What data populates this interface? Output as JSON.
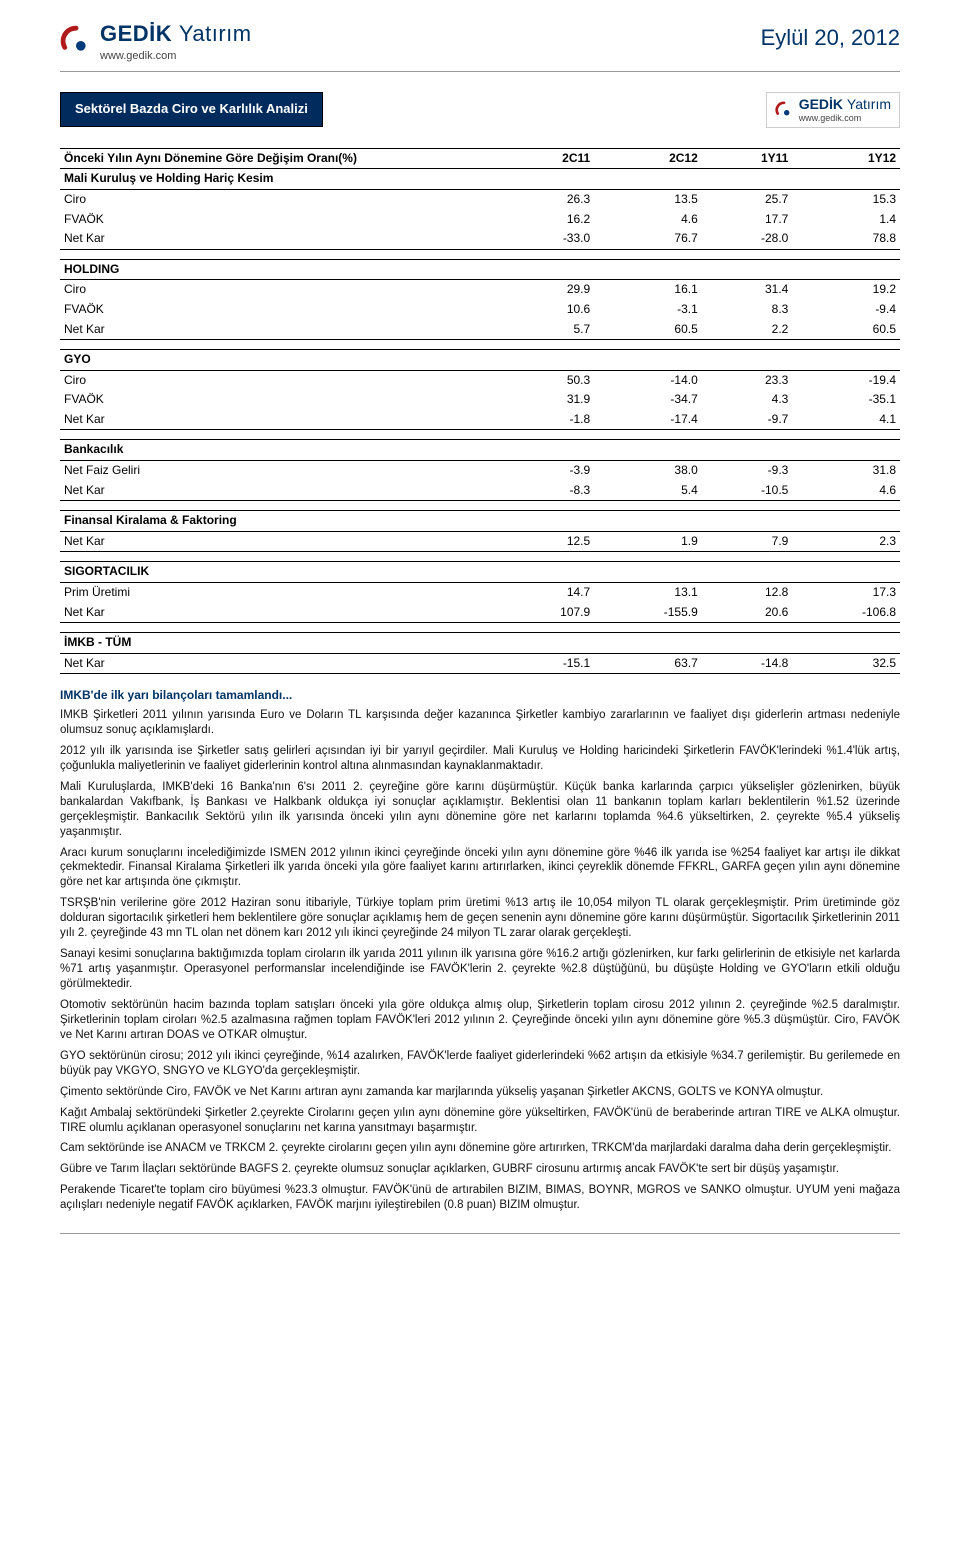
{
  "header": {
    "brand": "GEDİK",
    "brand_suffix": "Yatırım",
    "url": "www.gedik.com",
    "date": "Eylül 20, 2012",
    "logo_colors": {
      "arc": "#b11a1a",
      "dot": "#003a7a"
    }
  },
  "title": "Sektörel Bazda Ciro ve Karlılık Analizi",
  "table": {
    "heading": "Önceki Yılın Aynı Dönemine Göre Değişim Oranı(%)",
    "columns": [
      "2C11",
      "2C12",
      "1Y11",
      "1Y12"
    ],
    "sections": [
      {
        "name": "Mali Kuruluş ve Holding Hariç Kesim",
        "rows": [
          {
            "label": "Ciro",
            "vals": [
              "26.3",
              "13.5",
              "25.7",
              "15.3"
            ]
          },
          {
            "label": "FVAÖK",
            "vals": [
              "16.2",
              "4.6",
              "17.7",
              "1.4"
            ]
          },
          {
            "label": "Net Kar",
            "vals": [
              "-33.0",
              "76.7",
              "-28.0",
              "78.8"
            ]
          }
        ]
      },
      {
        "name": "HOLDING",
        "rows": [
          {
            "label": "Ciro",
            "vals": [
              "29.9",
              "16.1",
              "31.4",
              "19.2"
            ]
          },
          {
            "label": "FVAÖK",
            "vals": [
              "10.6",
              "-3.1",
              "8.3",
              "-9.4"
            ]
          },
          {
            "label": "Net Kar",
            "vals": [
              "5.7",
              "60.5",
              "2.2",
              "60.5"
            ]
          }
        ]
      },
      {
        "name": "GYO",
        "rows": [
          {
            "label": "Ciro",
            "vals": [
              "50.3",
              "-14.0",
              "23.3",
              "-19.4"
            ]
          },
          {
            "label": "FVAÖK",
            "vals": [
              "31.9",
              "-34.7",
              "4.3",
              "-35.1"
            ]
          },
          {
            "label": "Net Kar",
            "vals": [
              "-1.8",
              "-17.4",
              "-9.7",
              "4.1"
            ]
          }
        ]
      },
      {
        "name": "Bankacılık",
        "rows": [
          {
            "label": "Net Faiz Geliri",
            "vals": [
              "-3.9",
              "38.0",
              "-9.3",
              "31.8"
            ]
          },
          {
            "label": "Net Kar",
            "vals": [
              "-8.3",
              "5.4",
              "-10.5",
              "4.6"
            ]
          }
        ]
      },
      {
        "name": "Finansal Kiralama & Faktoring",
        "rows": [
          {
            "label": "Net Kar",
            "vals": [
              "12.5",
              "1.9",
              "7.9",
              "2.3"
            ]
          }
        ]
      },
      {
        "name": "SIGORTACILIK",
        "rows": [
          {
            "label": "Prim Üretimi",
            "vals": [
              "14.7",
              "13.1",
              "12.8",
              "17.3"
            ]
          },
          {
            "label": "Net Kar",
            "vals": [
              "107.9",
              "-155.9",
              "20.6",
              "-106.8"
            ]
          }
        ]
      },
      {
        "name": "İMKB - TÜM",
        "rows": [
          {
            "label": "Net Kar",
            "vals": [
              "-15.1",
              "63.7",
              "-14.8",
              "32.5"
            ]
          }
        ]
      }
    ]
  },
  "commentary": {
    "title": "IMKB'de ilk yarı bilançoları tamamlandı...",
    "paragraphs": [
      "IMKB Şirketleri 2011 yılının yarısında Euro ve Doların TL karşısında değer kazanınca Şirketler kambiyo zararlarının ve faaliyet dışı giderlerin artması nedeniyle olumsuz sonuç açıklamışlardı.",
      "2012 yılı ilk yarısında ise Şirketler satış gelirleri açısından iyi bir yarıyıl geçirdiler. Mali Kuruluş ve Holding haricindeki Şirketlerin FAVÖK'lerindeki %1.4'lük artış, çoğunlukla maliyetlerinin ve faaliyet giderlerinin kontrol altına alınmasından kaynaklanmaktadır.",
      "Mali Kuruluşlarda, IMKB'deki 16 Banka'nın 6'sı 2011 2. çeyreğine göre karını düşürmüştür. Küçük banka karlarında çarpıcı yükselişler gözlenirken, büyük bankalardan Vakıfbank, İş Bankası ve Halkbank oldukça iyi sonuçlar açıklamıştır. Beklentisi olan 11 bankanın toplam karları beklentilerin %1.52 üzerinde gerçekleşmiştir. Bankacılık Sektörü yılın ilk yarısında önceki yılın aynı dönemine göre net karlarını toplamda %4.6 yükseltirken, 2. çeyrekte %5.4 yükseliş yaşanmıştır.",
      "Aracı kurum sonuçlarını incelediğimizde ISMEN 2012 yılının ikinci çeyreğinde önceki yılın aynı dönemine göre %46 ilk yarıda ise %254 faaliyet kar artışı ile dikkat çekmektedir. Finansal Kiralama Şirketleri ilk yarıda önceki yıla göre faaliyet karını artırırlarken, ikinci çeyreklik dönemde FFKRL, GARFA geçen yılın aynı dönemine göre net kar artışında öne çıkmıştır.",
      "TSRŞB'nin verilerine göre 2012 Haziran sonu itibariyle, Türkiye toplam prim üretimi %13 artış ile 10,054 milyon TL olarak gerçekleşmiştir. Prim üretiminde göz dolduran sigortacılık şirketleri hem beklentilere göre sonuçlar açıklamış hem de geçen senenin aynı dönemine göre karını düşürmüştür. Sigortacılık Şirketlerinin 2011 yılı 2. çeyreğinde 43 mn TL olan net dönem karı 2012 yılı ikinci çeyreğinde 24 milyon TL zarar olarak gerçekleşti.",
      "Sanayi kesimi sonuçlarına baktığımızda toplam ciroların ilk yarıda 2011 yılının ilk yarısına göre %16.2 artığı gözlenirken, kur farkı gelirlerinin de etkisiyle net karlarda %71 artış yaşanmıştır. Operasyonel performanslar incelendiğinde ise FAVÖK'lerin 2. çeyrekte %2.8 düştüğünü, bu düşüşte Holding ve GYO'ların etkili olduğu görülmektedir.",
      "Otomotiv sektörünün hacim bazında toplam satışları önceki yıla göre oldukça almış olup, Şirketlerin toplam cirosu 2012 yılının 2. çeyreğinde %2.5 daralmıştır. Şirketlerinin toplam ciroları %2.5 azalmasına rağmen toplam FAVÖK'leri 2012 yılının 2. Çeyreğinde önceki yılın aynı dönemine göre %5.3 düşmüştür. Ciro, FAVÖK ve Net Karını artıran DOAS ve OTKAR olmuştur.",
      "GYO sektörünün cirosu; 2012 yılı ikinci çeyreğinde, %14 azalırken, FAVÖK'lerde faaliyet giderlerindeki %62 artışın da etkisiyle %34.7 gerilemiştir. Bu gerilemede en büyük pay VKGYO, SNGYO ve KLGYO'da gerçekleşmiştir.",
      "Çimento sektöründe Ciro, FAVÖK ve Net Karını artıran aynı zamanda kar marjlarında yükseliş yaşanan Şirketler AKCNS, GOLTS ve KONYA olmuştur.",
      "Kağıt Ambalaj sektöründeki Şirketler 2.çeyrekte Cirolarını geçen yılın aynı dönemine göre yükseltirken, FAVÖK'ünü de beraberinde artıran TIRE ve ALKA olmuştur. TIRE olumlu açıklanan operasyonel sonuçlarını net karına yansıtmayı başarmıştır.",
      "Cam sektöründe ise ANACM ve TRKCM 2. çeyrekte cirolarını geçen yılın aynı dönemine göre artırırken, TRKCM'da marjlardaki daralma daha derin gerçekleşmiştir.",
      "Gübre ve Tarım İlaçları sektöründe BAGFS 2. çeyrekte olumsuz sonuçlar açıklarken, GUBRF cirosunu artırmış ancak FAVÖK'te sert bir düşüş yaşamıştır.",
      "Perakende Ticaret'te toplam ciro büyümesi %23.3 olmuştur. FAVÖK'ünü de artırabilen BIZIM, BIMAS, BOYNR, MGROS ve SANKO olmuştur. UYUM yeni mağaza açılışları nedeniyle negatif FAVÖK açıklarken, FAVÖK marjını iyileştirebilen (0.8 puan) BIZIM olmuştur."
    ]
  },
  "colors": {
    "title_bg": "#002b5c",
    "brand": "#003366",
    "text": "#000000"
  }
}
